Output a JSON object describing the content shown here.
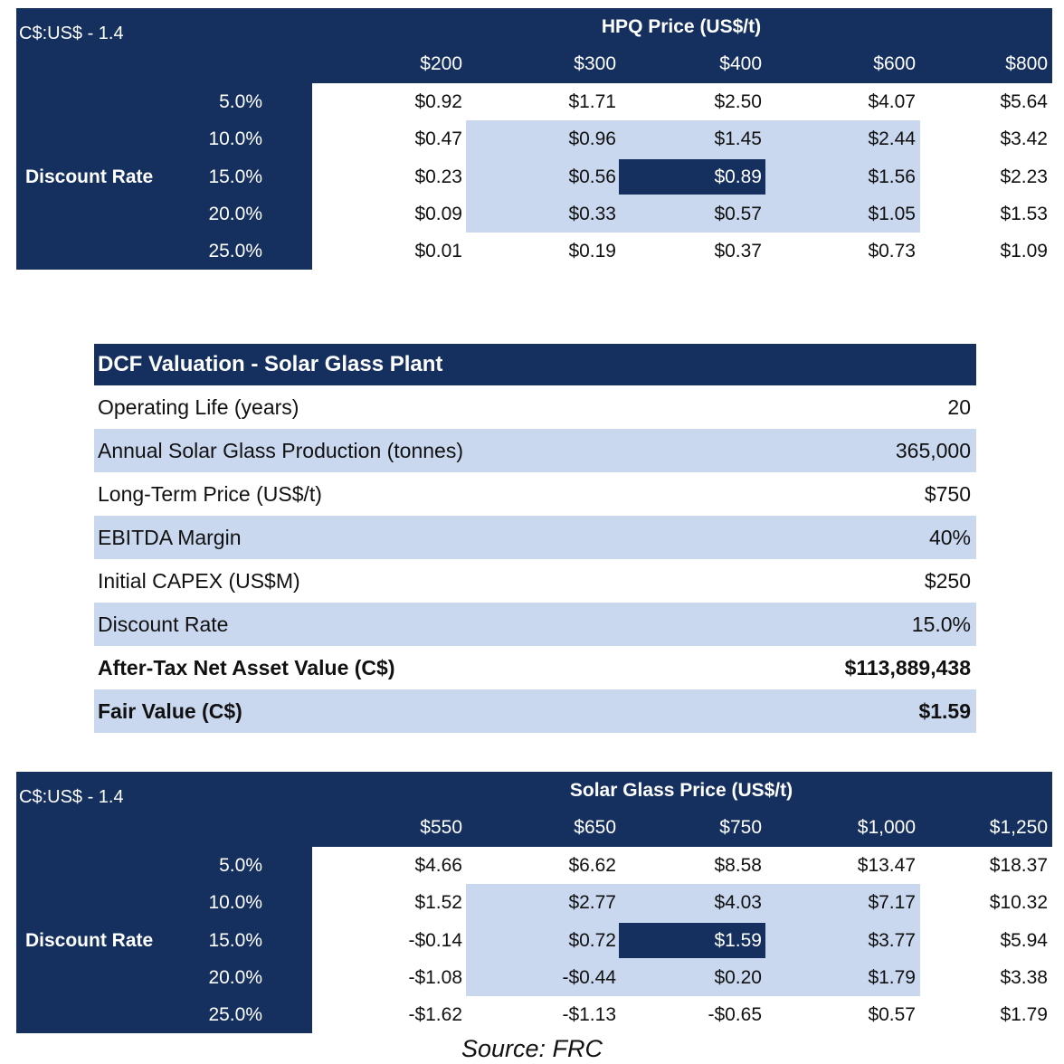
{
  "top_table": {
    "fx_label": "C$:US$ - 1.4",
    "title": "HPQ Price (US$/t)",
    "row_header": "Discount Rate",
    "columns": [
      "$200",
      "$300",
      "$400",
      "$600",
      "$800"
    ],
    "rows": [
      {
        "rate": "5.0%",
        "cells": [
          "$0.92",
          "$1.71",
          "$2.50",
          "$4.07",
          "$5.64"
        ]
      },
      {
        "rate": "10.0%",
        "cells": [
          "$0.47",
          "$0.96",
          "$1.45",
          "$2.44",
          "$3.42"
        ]
      },
      {
        "rate": "15.0%",
        "cells": [
          "$0.23",
          "$0.56",
          "$0.89",
          "$1.56",
          "$2.23"
        ]
      },
      {
        "rate": "20.0%",
        "cells": [
          "$0.09",
          "$0.33",
          "$0.57",
          "$1.05",
          "$1.53"
        ]
      },
      {
        "rate": "25.0%",
        "cells": [
          "$0.01",
          "$0.19",
          "$0.37",
          "$0.73",
          "$1.09"
        ]
      }
    ]
  },
  "dcf": {
    "title": "DCF Valuation - Solar Glass Plant",
    "rows": [
      {
        "label": "Operating Life (years)",
        "value": "20"
      },
      {
        "label": "Annual Solar Glass Production (tonnes)",
        "value": "365,000"
      },
      {
        "label": "Long-Term Price (US$/t)",
        "value": "$750"
      },
      {
        "label": "EBITDA Margin",
        "value": "40%"
      },
      {
        "label": "Initial CAPEX (US$M)",
        "value": "$250"
      },
      {
        "label": "Discount Rate",
        "value": "15.0%"
      },
      {
        "label": "After-Tax Net Asset Value (C$)",
        "value": "$113,889,438"
      },
      {
        "label": "Fair Value (C$)",
        "value": "$1.59"
      }
    ]
  },
  "bottom_table": {
    "fx_label": "C$:US$ - 1.4",
    "title": "Solar Glass Price (US$/t)",
    "row_header": "Discount Rate",
    "columns": [
      "$550",
      "$650",
      "$750",
      "$1,000",
      "$1,250"
    ],
    "rows": [
      {
        "rate": "5.0%",
        "cells": [
          "$4.66",
          "$6.62",
          "$8.58",
          "$13.47",
          "$18.37"
        ]
      },
      {
        "rate": "10.0%",
        "cells": [
          "$1.52",
          "$2.77",
          "$4.03",
          "$7.17",
          "$10.32"
        ]
      },
      {
        "rate": "15.0%",
        "cells": [
          "-$0.14",
          "$0.72",
          "$1.59",
          "$3.77",
          "$5.94"
        ]
      },
      {
        "rate": "20.0%",
        "cells": [
          "-$1.08",
          "-$0.44",
          "$0.20",
          "$1.79",
          "$3.38"
        ]
      },
      {
        "rate": "25.0%",
        "cells": [
          "-$1.62",
          "-$1.13",
          "-$0.65",
          "$0.57",
          "$1.79"
        ]
      }
    ]
  },
  "source": "Source: FRC"
}
